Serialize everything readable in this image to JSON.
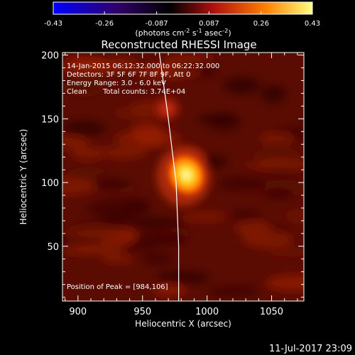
{
  "chart_data": {
    "type": "heatmap",
    "title": "Reconstructed RHESSI Image",
    "xlabel": "Heliocentric X (arcsec)",
    "ylabel": "Heliocentric Y (arcsec)",
    "xlim": [
      888,
      1075
    ],
    "ylim": [
      7,
      202
    ],
    "x_ticks": [
      900,
      950,
      1000,
      1050
    ],
    "y_ticks": [
      50,
      100,
      150,
      200
    ],
    "colorbar": {
      "min": -0.43,
      "max": 0.43,
      "ticks": [
        "-0.43",
        "-0.26",
        "-0.087",
        "0.087",
        "0.26",
        "0.43"
      ],
      "units": "(photons cm",
      "units_exp1": "-2",
      "units_mid": " s",
      "units_exp2": "-1",
      "units_tail": " asec",
      "units_exp3": "-2",
      "units_close": ")",
      "colors": [
        "#0000ff",
        "#300068",
        "#000000",
        "#b01010",
        "#ff8000",
        "#ffff80"
      ]
    },
    "annotations": {
      "time_range": "14-Jan-2015 06:12:32.000 to 06:22:32.000",
      "detectors": "Detectors: 3F 5F 6F 7F 8F 9F, Att 0",
      "energy": "Energy Range: 3.0 - 6.0 keV",
      "method": "Clean",
      "counts": "Total counts: 3.74E+04",
      "peak": "Position of Peak = [984,106]"
    },
    "peak": {
      "x": 984,
      "y": 106,
      "value": 0.43
    },
    "secondary_source": {
      "x": 969,
      "y": 158,
      "value": 0.2
    },
    "limb_curve": [
      [
        963,
        202
      ],
      [
        970,
        150
      ],
      [
        976,
        100
      ],
      [
        978,
        50
      ],
      [
        978,
        7
      ]
    ]
  },
  "footer": {
    "date_stamp": "11-Jul-2017 23:09"
  }
}
